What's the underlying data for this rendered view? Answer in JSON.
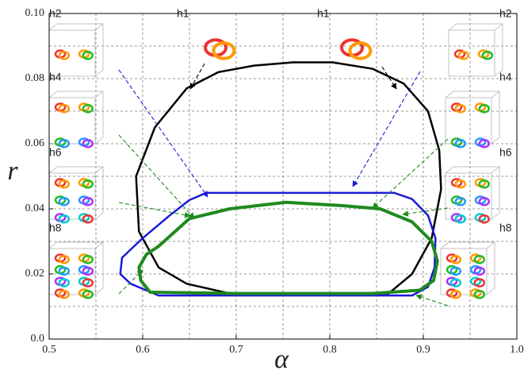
{
  "chart_data": {
    "type": "line",
    "x_label": "α",
    "y_label": "r",
    "xlim": [
      0.5,
      1.0
    ],
    "ylim": [
      0,
      0.1
    ],
    "xticks": [
      0.5,
      0.6,
      0.7,
      0.8,
      0.9,
      {
        "value": 1,
        "label": "1.0"
      }
    ],
    "yticks": [
      {
        "value": 0,
        "label": "0.0"
      },
      0.02,
      0.04,
      0.06,
      0.08,
      {
        "value": 0.1,
        "label": "0.10"
      }
    ],
    "minor_xticks": [
      0.55,
      0.65,
      0.75,
      0.85,
      0.95
    ],
    "minor_yticks": [
      0.01,
      0.03,
      0.05,
      0.07,
      0.09
    ],
    "grid": true,
    "closed": true,
    "series": [
      {
        "color": "#000000",
        "x": [
          0.647,
          0.613,
          0.593,
          0.596,
          0.617,
          0.647,
          0.693,
          0.863,
          0.888,
          0.909,
          0.919,
          0.917,
          0.905,
          0.879,
          0.846,
          0.803,
          0.761,
          0.719,
          0.681
        ],
        "y": [
          0.077,
          0.065,
          0.05,
          0.033,
          0.022,
          0.017,
          0.014,
          0.014,
          0.02,
          0.031,
          0.046,
          0.058,
          0.07,
          0.0785,
          0.083,
          0.085,
          0.085,
          0.084,
          0.082
        ]
      },
      {
        "color": "#1a1adc",
        "x": [
          0.668,
          0.869,
          0.888,
          0.905,
          0.913,
          0.912,
          0.905,
          0.888,
          0.617,
          0.587,
          0.576,
          0.578,
          0.6,
          0.629,
          0.65
        ],
        "y": [
          0.0449,
          0.0449,
          0.043,
          0.038,
          0.031,
          0.022,
          0.016,
          0.0134,
          0.0134,
          0.017,
          0.02,
          0.025,
          0.031,
          0.038,
          0.0427
        ]
      },
      {
        "color": "#1e8a1e",
        "x": [
          0.617,
          0.65,
          0.693,
          0.753,
          0.812,
          0.854,
          0.888,
          0.909,
          0.915,
          0.911,
          0.896,
          0.846,
          0.702,
          0.608,
          0.598,
          0.596,
          0.604
        ],
        "y": [
          0.0285,
          0.037,
          0.04,
          0.042,
          0.041,
          0.04,
          0.036,
          0.03,
          0.024,
          0.018,
          0.015,
          0.014,
          0.014,
          0.0144,
          0.018,
          0.022,
          0.026
        ]
      }
    ],
    "insets": [
      "h2",
      "h1",
      "h1",
      "h2",
      "h4",
      "h4",
      "h6",
      "h6",
      "h8",
      "h8"
    ]
  }
}
